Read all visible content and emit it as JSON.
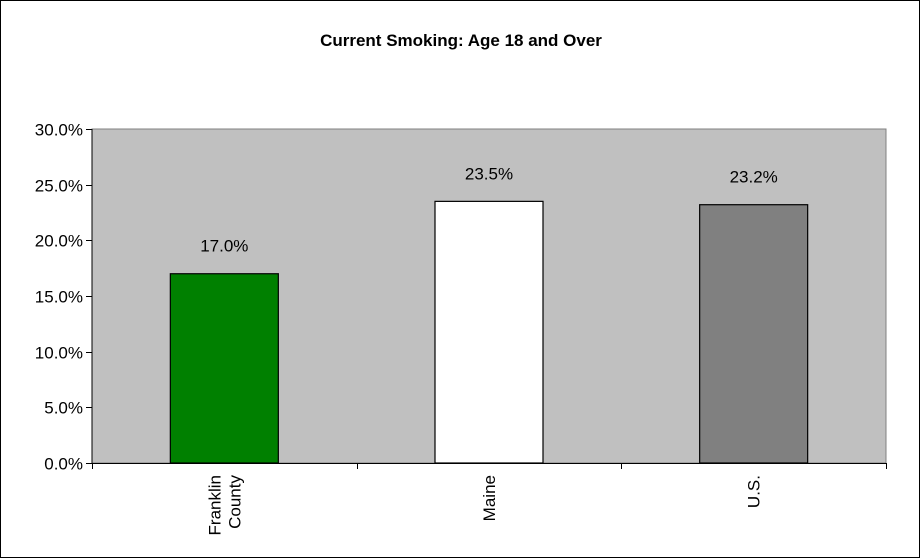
{
  "chart_data": {
    "type": "bar",
    "title": "Current Smoking: Age 18 and Over",
    "categories": [
      [
        "Franklin",
        "County"
      ],
      [
        "Maine"
      ],
      [
        "U.S."
      ]
    ],
    "values": [
      17.0,
      23.5,
      23.2
    ],
    "data_labels": [
      "17.0%",
      "23.5%",
      "23.2%"
    ],
    "bar_colors": [
      "#008000",
      "#ffffff",
      "#808080"
    ],
    "plot_background": "#c0c0c0",
    "ylim": [
      0,
      30
    ],
    "yticks": [
      0,
      5,
      10,
      15,
      20,
      25,
      30
    ],
    "ytick_labels": [
      "0.0%",
      "5.0%",
      "10.0%",
      "15.0%",
      "20.0%",
      "25.0%",
      "30.0%"
    ],
    "grid": false,
    "legend": "none",
    "xlabel": "",
    "ylabel": ""
  }
}
